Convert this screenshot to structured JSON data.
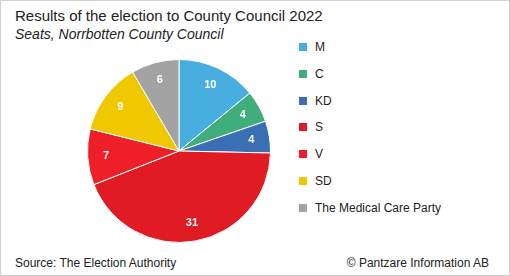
{
  "chart_data": {
    "type": "pie",
    "title": "Results of the election to County Council 2022",
    "subtitle": "Seats, Norrbotten County Council",
    "categories": [
      "M",
      "C",
      "KD",
      "S",
      "V",
      "SD",
      "The Medical Care Party"
    ],
    "values": [
      10,
      4,
      4,
      31,
      7,
      9,
      6
    ],
    "colors": [
      "#48aee0",
      "#3fae7a",
      "#3a70b3",
      "#e01b24",
      "#ef1f2a",
      "#efc800",
      "#a3a3a3"
    ],
    "data_labels": true,
    "legend": "right",
    "annotations": [
      "Source: The Election Authority",
      "© Pantzare Information AB"
    ]
  }
}
